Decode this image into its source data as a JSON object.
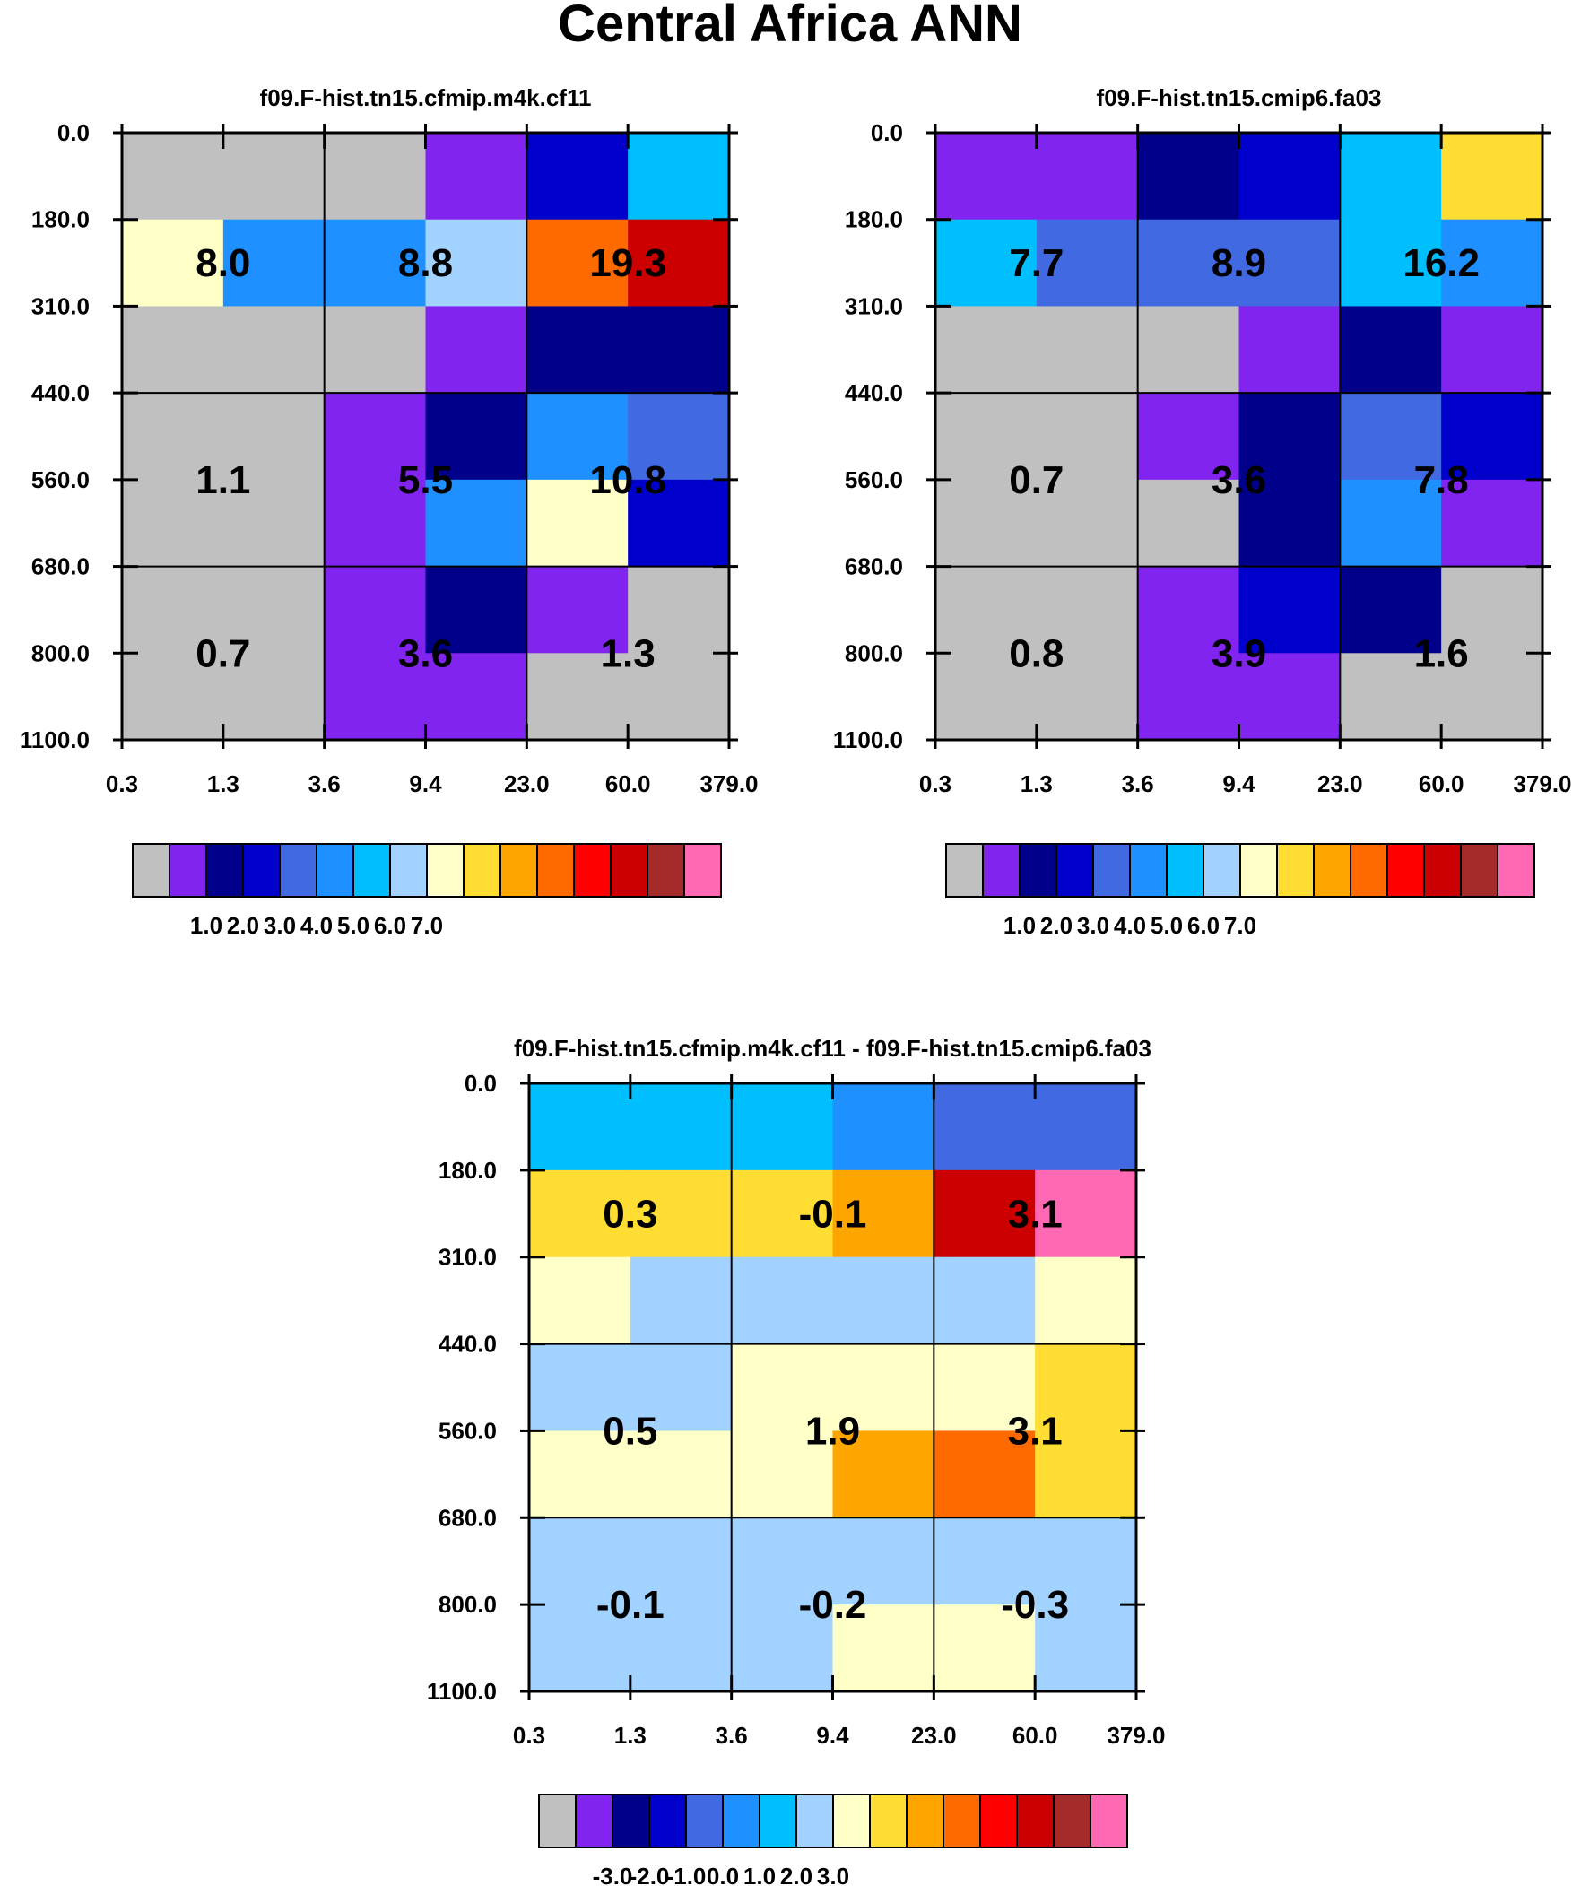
{
  "title": "Central Africa ANN",
  "colors": {
    "abs_palette": [
      "#c0c0c0",
      "#8224ef",
      "#00008b",
      "#0000cd",
      "#4169e1",
      "#1e90ff",
      "#00bfff",
      "#a2d2ff",
      "#ffffc8",
      "#ffdd33",
      "#ffa500",
      "#ff6a00",
      "#ff0000",
      "#cc0000",
      "#a52a2a",
      "#ff69b4"
    ],
    "diff_palette": [
      "#c0c0c0",
      "#8224ef",
      "#00008b",
      "#0000cd",
      "#4169e1",
      "#1e90ff",
      "#00bfff",
      "#a2d2ff",
      "#ffffc8",
      "#ffdd33",
      "#ffa500",
      "#ff6a00",
      "#ff0000",
      "#cc0000",
      "#a52a2a",
      "#ff69b4"
    ]
  },
  "chart_data": [
    {
      "type": "heatmap",
      "title": "f09.F-hist.tn15.cfmip.m4k.cf11",
      "xlabel": "",
      "ylabel": "",
      "x_tick_labels": [
        "0.3",
        "1.3",
        "3.6",
        "9.4",
        "23.0",
        "60.0",
        "379.0"
      ],
      "y_tick_labels": [
        "0.0",
        "180.0",
        "310.0",
        "440.0",
        "560.0",
        "680.0",
        "800.0",
        "1100.0"
      ],
      "cells": [
        [
          0,
          0,
          0,
          1,
          3,
          6
        ],
        [
          8,
          5,
          5,
          7,
          11,
          13
        ],
        [
          0,
          0,
          0,
          1,
          2,
          2
        ],
        [
          0,
          0,
          1,
          2,
          5,
          4
        ],
        [
          0,
          0,
          1,
          5,
          8,
          3
        ],
        [
          0,
          0,
          1,
          2,
          1,
          0
        ],
        [
          0,
          0,
          1,
          1,
          0,
          0
        ]
      ],
      "group_labels": [
        [
          "8.0",
          "8.8",
          "19.3"
        ],
        [
          "1.1",
          "5.5",
          "10.8"
        ],
        [
          "0.7",
          "3.6",
          "1.3"
        ]
      ],
      "colorbar_labels": [
        "1.0",
        "2.0",
        "3.0",
        "4.0",
        "5.0",
        "6.0",
        "7.0"
      ]
    },
    {
      "type": "heatmap",
      "title": "f09.F-hist.tn15.cmip6.fa03",
      "xlabel": "",
      "ylabel": "",
      "x_tick_labels": [
        "0.3",
        "1.3",
        "3.6",
        "9.4",
        "23.0",
        "60.0",
        "379.0"
      ],
      "y_tick_labels": [
        "0.0",
        "180.0",
        "310.0",
        "440.0",
        "560.0",
        "680.0",
        "800.0",
        "1100.0"
      ],
      "cells": [
        [
          1,
          1,
          2,
          3,
          6,
          9
        ],
        [
          6,
          4,
          4,
          4,
          6,
          5
        ],
        [
          0,
          0,
          0,
          1,
          2,
          1
        ],
        [
          0,
          0,
          1,
          2,
          4,
          3
        ],
        [
          0,
          0,
          0,
          2,
          5,
          1
        ],
        [
          0,
          0,
          1,
          3,
          2,
          0
        ],
        [
          0,
          0,
          1,
          1,
          0,
          0
        ]
      ],
      "group_labels": [
        [
          "7.7",
          "8.9",
          "16.2"
        ],
        [
          "0.7",
          "3.6",
          "7.8"
        ],
        [
          "0.8",
          "3.9",
          "1.6"
        ]
      ],
      "colorbar_labels": [
        "1.0",
        "2.0",
        "3.0",
        "4.0",
        "5.0",
        "6.0",
        "7.0"
      ]
    },
    {
      "type": "heatmap",
      "title": "f09.F-hist.tn15.cfmip.m4k.cf11 - f09.F-hist.tn15.cmip6.fa03",
      "xlabel": "",
      "ylabel": "",
      "x_tick_labels": [
        "0.3",
        "1.3",
        "3.6",
        "9.4",
        "23.0",
        "60.0",
        "379.0"
      ],
      "y_tick_labels": [
        "0.0",
        "180.0",
        "310.0",
        "440.0",
        "560.0",
        "680.0",
        "800.0",
        "1100.0"
      ],
      "cells": [
        [
          6,
          6,
          6,
          5,
          4,
          4
        ],
        [
          9,
          9,
          9,
          10,
          13,
          15
        ],
        [
          8,
          7,
          7,
          7,
          7,
          8
        ],
        [
          7,
          7,
          8,
          8,
          8,
          9
        ],
        [
          8,
          8,
          8,
          10,
          11,
          9
        ],
        [
          7,
          7,
          7,
          7,
          7,
          7
        ],
        [
          7,
          7,
          7,
          8,
          8,
          7
        ]
      ],
      "group_labels": [
        [
          "0.3",
          "-0.1",
          "3.1"
        ],
        [
          "0.5",
          "1.9",
          "3.1"
        ],
        [
          "-0.1",
          "-0.2",
          "-0.3"
        ]
      ],
      "colorbar_labels": [
        "-3.0",
        "-2.0",
        "-1.0",
        "0.0",
        "1.0",
        "2.0",
        "3.0"
      ]
    }
  ]
}
